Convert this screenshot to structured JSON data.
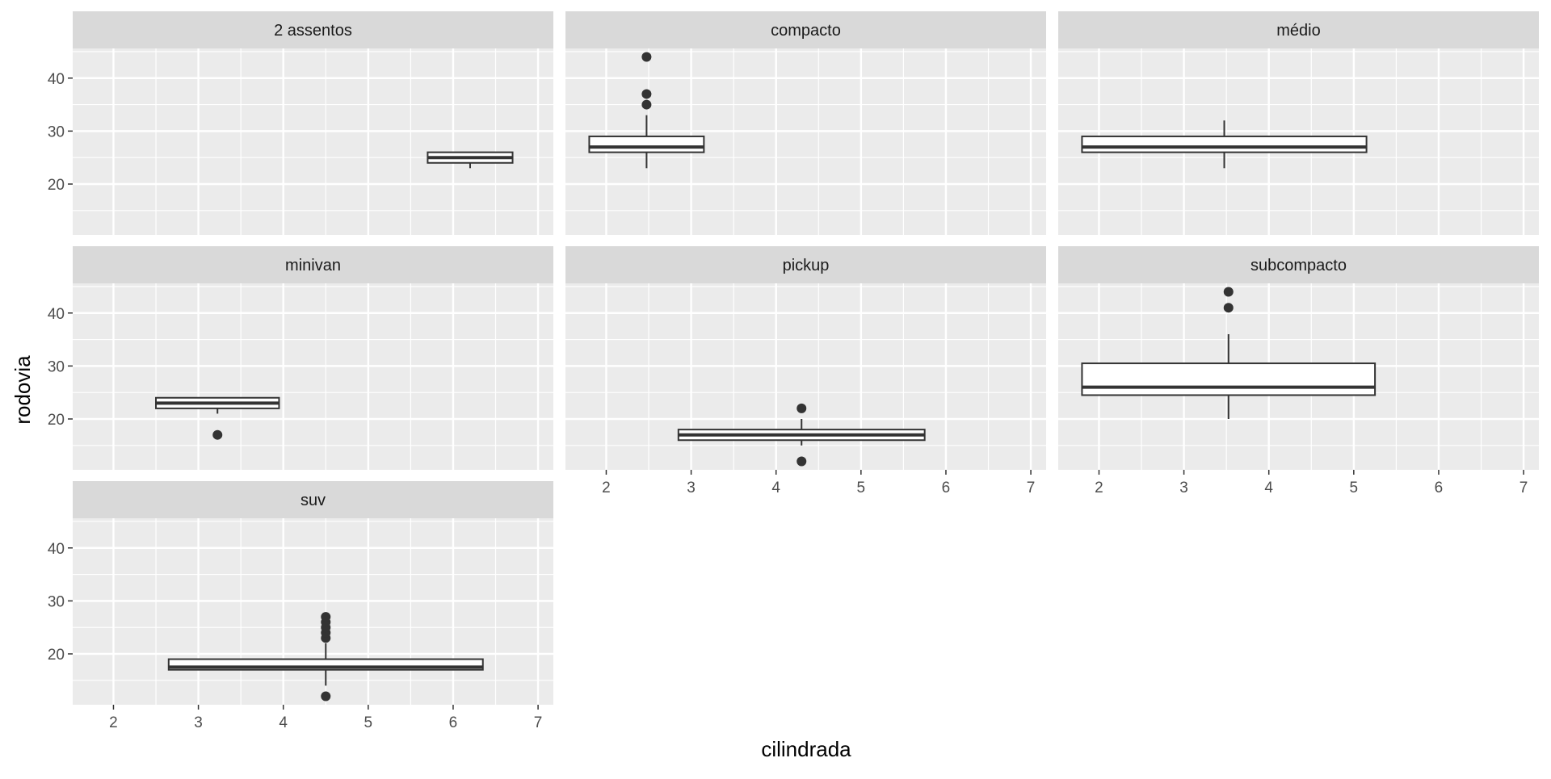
{
  "chart_data": {
    "type": "boxplot",
    "xlabel": "cilindrada",
    "ylabel": "rodovia",
    "xlim": [
      1.52,
      7.18
    ],
    "ylim": [
      10.4,
      45.6
    ],
    "x_ticks": [
      "2",
      "3",
      "4",
      "5",
      "6",
      "7"
    ],
    "y_ticks": [
      "20",
      "30",
      "40"
    ],
    "grid": true,
    "colors": {
      "panel_bg": "#ebebeb",
      "strip_bg": "#d9d9d9",
      "grid": "#ffffff",
      "box_stroke": "#333333",
      "box_fill": "#ffffff"
    },
    "panels": [
      {
        "label": "2 assentos",
        "xmin": 5.7,
        "xmax": 6.7,
        "q1": 24,
        "median": 25,
        "q3": 26,
        "whisker_low": 23,
        "whisker_high": 26,
        "outliers": []
      },
      {
        "label": "compacto",
        "xmin": 1.8,
        "xmax": 3.15,
        "q1": 26,
        "median": 27,
        "q3": 29,
        "whisker_low": 23,
        "whisker_high": 33,
        "outliers": [
          35,
          37,
          44
        ]
      },
      {
        "label": "médio",
        "xmin": 1.8,
        "xmax": 5.15,
        "q1": 26,
        "median": 27,
        "q3": 29,
        "whisker_low": 23,
        "whisker_high": 32,
        "outliers": []
      },
      {
        "label": "minivan",
        "xmin": 2.5,
        "xmax": 3.95,
        "q1": 22,
        "median": 23,
        "q3": 24,
        "whisker_low": 21,
        "whisker_high": 24,
        "outliers": [
          17
        ]
      },
      {
        "label": "pickup",
        "xmin": 2.85,
        "xmax": 5.75,
        "q1": 16,
        "median": 17,
        "q3": 18,
        "whisker_low": 15,
        "whisker_high": 20,
        "outliers": [
          12,
          22
        ]
      },
      {
        "label": "subcompacto",
        "xmin": 1.8,
        "xmax": 5.25,
        "q1": 24.5,
        "median": 26,
        "q3": 30.5,
        "whisker_low": 20,
        "whisker_high": 36,
        "outliers": [
          41,
          44
        ]
      },
      {
        "label": "suv",
        "xmin": 2.65,
        "xmax": 6.35,
        "q1": 17,
        "median": 17.5,
        "q3": 19,
        "whisker_low": 14,
        "whisker_high": 22,
        "outliers": [
          12,
          23,
          24,
          25,
          26,
          27
        ]
      }
    ]
  }
}
